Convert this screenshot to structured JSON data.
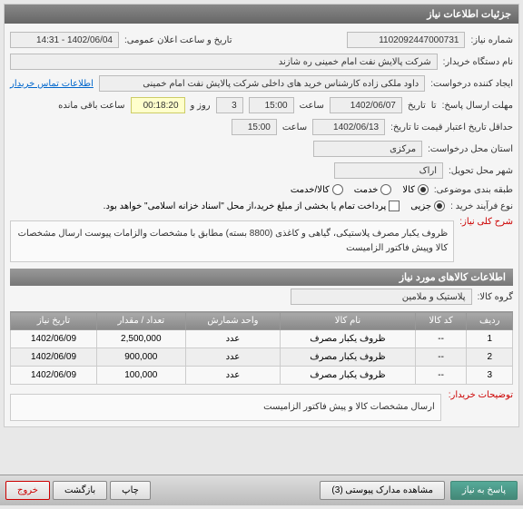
{
  "panel1_title": "جزئیات اطلاعات نیاز",
  "labels": {
    "need_no": "شماره نیاز:",
    "announce_date": "تاریخ و ساعت اعلان عمومی:",
    "buyer_org": "نام دستگاه خریدار:",
    "requester": "ایجاد کننده درخواست:",
    "contact_link": "اطلاعات تماس خریدار",
    "response_deadline": "مهلت ارسال پاسخ:",
    "price_valid": "حداقل تاریخ اعتبار قیمت تا تاریخ:",
    "request_loc": "استان محل درخواست:",
    "delivery_city": "شهر محل تحویل:",
    "svc_cat": "طبقه بندی موضوعی:",
    "purchase_type": "نوع فرآیند خرید :",
    "need_desc": "شرح کلی نیاز:",
    "from": "تا",
    "date_word": "تاریخ",
    "hour": "ساعت",
    "day_and": "روز و",
    "remaining": "ساعت باقی مانده",
    "goods_group": "گروه کالا:",
    "buyer_notes": "توضیحات خریدار:"
  },
  "values": {
    "need_no": "1102092447000731",
    "announce_date": "1402/06/04 - 14:31",
    "buyer_org": "شرکت پالایش نفت امام خمینی ره شازند",
    "requester": "داود ملکی زاده کارشناس خرید های داخلی شرکت پالایش نفت امام خمینی",
    "resp_date": "1402/06/07",
    "resp_time": "15:00",
    "resp_days": "3",
    "remain": "00:18:20",
    "valid_date": "1402/06/13",
    "valid_time": "15:00",
    "province": "مرکزی",
    "city": "اراک",
    "goods_group": "پلاستیک و ملامین"
  },
  "svc_opts": {
    "kala": "کالا",
    "khadmat": "خدمت",
    "kalakhadmat": "کالا/خدمت"
  },
  "ptype_opts": {
    "joze": "جزیی",
    "sum": "پرداخت تمام یا بخشی از مبلغ خرید،از محل \"اسناد خزانه اسلامی\" خواهد بود."
  },
  "desc_text": "ظروف یکبار مصرف پلاستیکی، گیاهی و کاغذی (8800 بسته) مطابق با مشخصات والزامات پیوست ارسال مشخصات کالا وپیش فاکتور الزامیست",
  "sub_header": "اطلاعات کالاهای مورد نیاز",
  "table": {
    "headers": [
      "ردیف",
      "کد کالا",
      "نام کالا",
      "واحد شمارش",
      "تعداد / مقدار",
      "تاریخ نیاز"
    ],
    "rows": [
      [
        "1",
        "--",
        "ظروف یکبار مصرف",
        "عدد",
        "2,500,000",
        "1402/06/09"
      ],
      [
        "2",
        "--",
        "ظروف یکبار مصرف",
        "عدد",
        "900,000",
        "1402/06/09"
      ],
      [
        "3",
        "--",
        "ظروف یکبار مصرف",
        "عدد",
        "100,000",
        "1402/06/09"
      ]
    ]
  },
  "buyer_notes_text": "ارسال مشخصات کالا و پیش فاکتور الزامیست",
  "buttons": {
    "respond": "پاسخ به نیاز",
    "attachments": "مشاهده مدارک پیوستی (3)",
    "print": "چاپ",
    "back": "بازگشت",
    "exit": "خروج"
  }
}
